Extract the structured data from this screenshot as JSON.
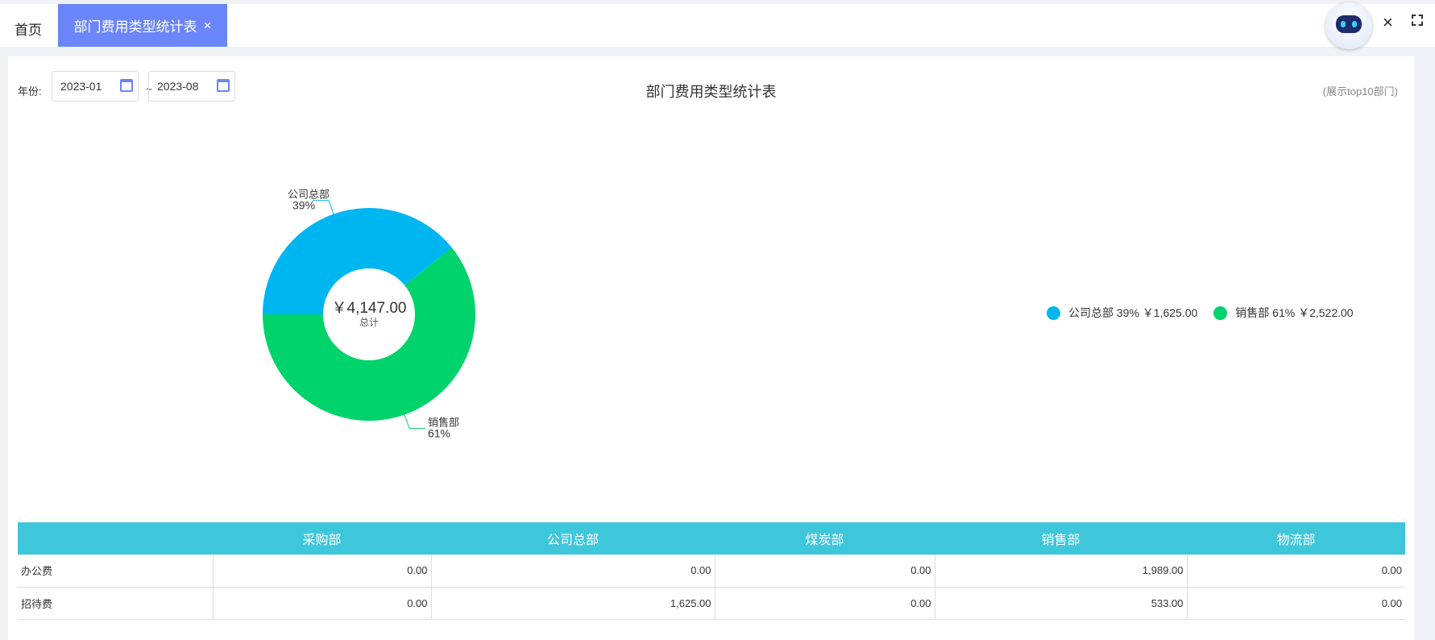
{
  "tabs": {
    "home": "首页",
    "active": "部门费用类型统计表",
    "close_glyph": "×"
  },
  "filter": {
    "label": "年份:",
    "from": "2023-01",
    "to": "2023-08",
    "sep": "~"
  },
  "title": "部门费用类型统计表",
  "note": "(展示top10部门)",
  "colors": {
    "accent": "#6b85fb",
    "header": "#3ec6db",
    "blue": "#00b6f1",
    "green": "#00d36b"
  },
  "chart_data": {
    "type": "pie",
    "donut": true,
    "center_value": "￥4,147.00",
    "center_label": "总计",
    "slices": [
      {
        "name": "公司总部",
        "percent": "39%",
        "value": 1625.0,
        "amount": "￥1,625.00",
        "color": "#00b6f1"
      },
      {
        "name": "销售部",
        "percent": "61%",
        "value": 2522.0,
        "amount": "￥2,522.00",
        "color": "#00d36b"
      }
    ],
    "legend_placement": "right"
  },
  "legend": [
    {
      "label": "公司总部 39% ￥1,625.00"
    },
    {
      "label": "销售部 61% ￥2,522.00"
    }
  ],
  "table": {
    "columns": [
      "",
      "采购部",
      "公司总部",
      "煤炭部",
      "销售部",
      "物流部"
    ],
    "rows": [
      [
        "办公费",
        "0.00",
        "0.00",
        "0.00",
        "1,989.00",
        "0.00"
      ],
      [
        "招待费",
        "0.00",
        "1,625.00",
        "0.00",
        "533.00",
        "0.00"
      ]
    ]
  }
}
